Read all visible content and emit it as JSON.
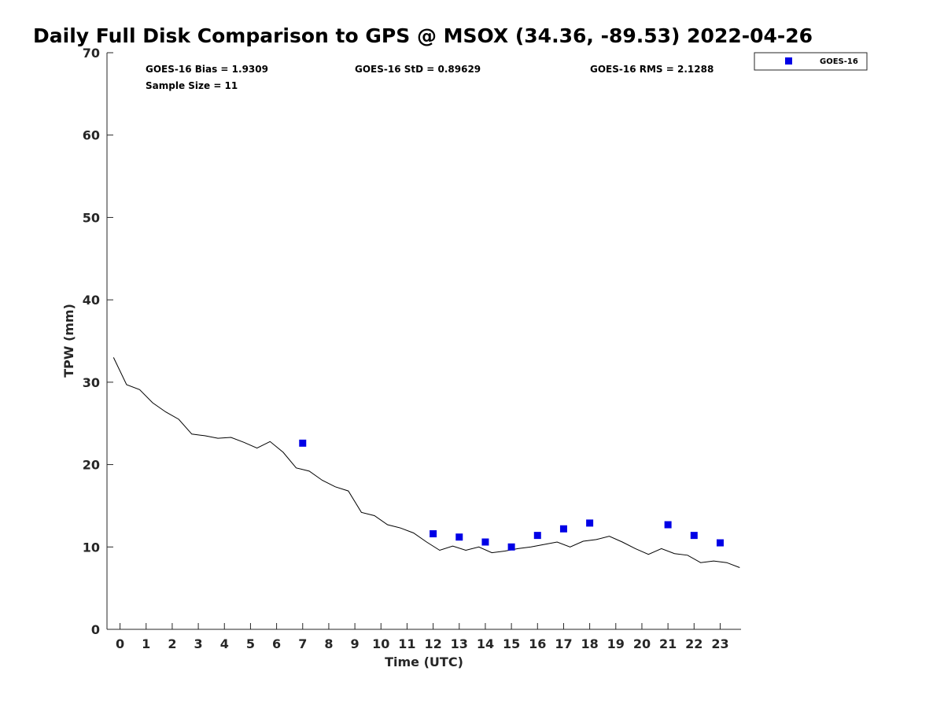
{
  "chart_data": {
    "type": "scatter",
    "title": "Daily Full Disk Comparison to GPS @ MSOX (34.36, -89.53) 2022-04-26",
    "xlabel": "Time (UTC)",
    "ylabel": "TPW (mm)",
    "xlim": [
      -0.5,
      23.8
    ],
    "ylim": [
      0,
      70
    ],
    "x_ticks": [
      "0",
      "1",
      "2",
      "3",
      "4",
      "5",
      "6",
      "7",
      "8",
      "9",
      "10",
      "11",
      "12",
      "13",
      "14",
      "15",
      "16",
      "17",
      "18",
      "19",
      "20",
      "21",
      "22",
      "23"
    ],
    "y_ticks": [
      "0",
      "10",
      "20",
      "30",
      "40",
      "50",
      "60",
      "70"
    ],
    "grid": false,
    "legend_position": "top-right, outside plot",
    "stats": {
      "bias": "GOES-16 Bias = 1.9309",
      "std": "GOES-16 StD = 0.89629",
      "rms": "GOES-16 RMS = 2.1288",
      "sample": "Sample Size = 11"
    },
    "series": [
      {
        "name": "GOES-16",
        "kind": "scatter",
        "color": "#0000e6",
        "marker": "square",
        "x": [
          7,
          12,
          13,
          14,
          15,
          16,
          17,
          18,
          21,
          22,
          23
        ],
        "y": [
          22.6,
          11.6,
          11.2,
          10.6,
          10.0,
          11.4,
          12.2,
          12.9,
          12.7,
          11.4,
          10.5
        ]
      },
      {
        "kind": "line",
        "color": "#000000",
        "x": [
          -0.25,
          0.25,
          0.75,
          1.25,
          1.75,
          2.25,
          2.75,
          3.25,
          3.75,
          4.25,
          4.75,
          5.25,
          5.75,
          6.25,
          6.75,
          7.25,
          7.75,
          8.25,
          8.75,
          9.25,
          9.75,
          10.25,
          10.75,
          11.25,
          11.75,
          12.25,
          12.75,
          13.25,
          13.75,
          14.25,
          14.75,
          15.25,
          15.75,
          16.25,
          16.75,
          17.25,
          17.75,
          18.25,
          18.75,
          19.25,
          19.75,
          20.25,
          20.75,
          21.25,
          21.75,
          22.25,
          22.75,
          23.25,
          23.75
        ],
        "y": [
          33.0,
          29.7,
          29.1,
          27.5,
          26.4,
          25.5,
          23.7,
          23.5,
          23.2,
          23.3,
          22.7,
          22.0,
          22.8,
          21.5,
          19.6,
          19.2,
          18.1,
          17.3,
          16.8,
          14.2,
          13.8,
          12.7,
          12.3,
          11.7,
          10.6,
          9.6,
          10.1,
          9.6,
          10.0,
          9.3,
          9.5,
          9.8,
          10.0,
          10.3,
          10.6,
          10.0,
          10.7,
          10.9,
          11.3,
          10.6,
          9.8,
          9.1,
          9.8,
          9.2,
          9.0,
          8.1,
          8.3,
          8.1,
          7.5
        ]
      }
    ]
  }
}
